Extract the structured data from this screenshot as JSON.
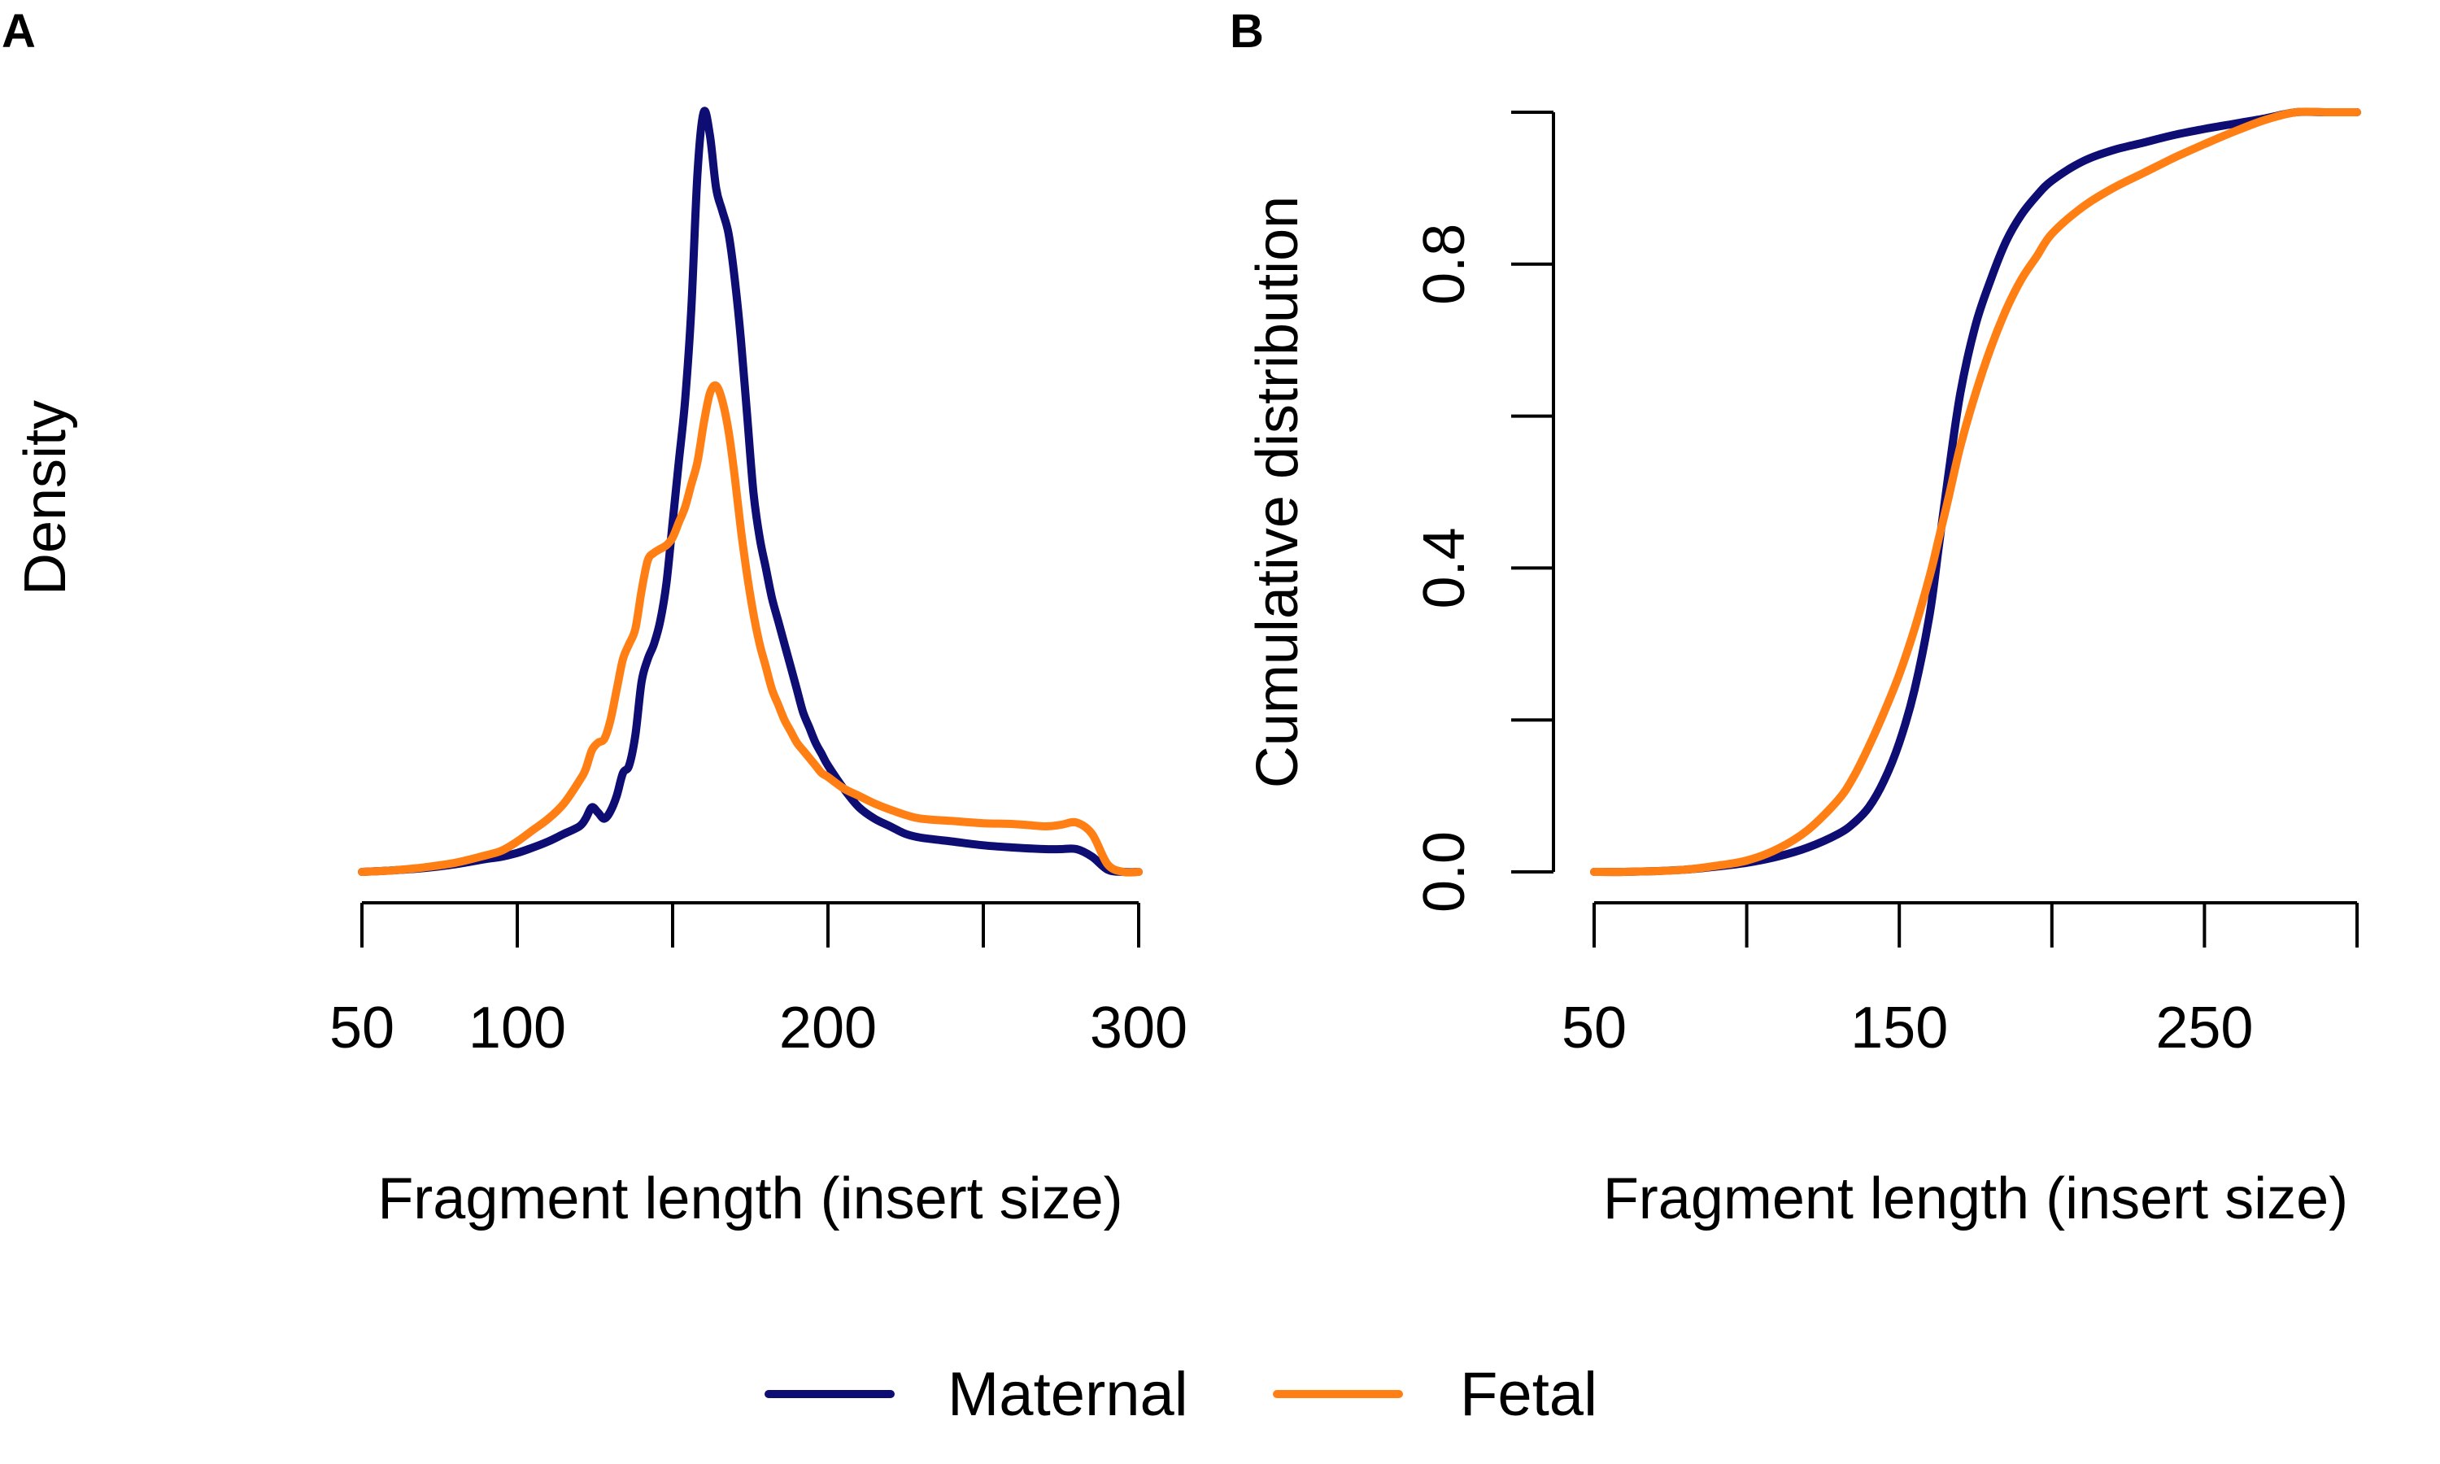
{
  "figure": {
    "panel_a_label": "A",
    "panel_b_label": "B"
  },
  "colors": {
    "maternal": "#0d0d73",
    "fetal": "#ff7f14",
    "axis": "#000000"
  },
  "legend": {
    "position": "bottom-center",
    "items": [
      {
        "label": "Maternal",
        "color": "#0d0d73"
      },
      {
        "label": "Fetal",
        "color": "#ff7f14"
      }
    ]
  },
  "chart_data": [
    {
      "panel": "A",
      "type": "line",
      "title": "",
      "xlabel": "Fragment length (insert size)",
      "ylabel": "Density",
      "xlim": [
        50,
        300
      ],
      "ylim": [
        0,
        1
      ],
      "x_ticks": [
        50,
        100,
        150,
        200,
        250,
        300
      ],
      "x_tick_labels": [
        "50",
        "100",
        "",
        "200",
        "",
        "300"
      ],
      "y_axis_shown": false,
      "grid": false,
      "series": [
        {
          "name": "Maternal",
          "color": "#0d0d73",
          "x": [
            50,
            60,
            70,
            80,
            90,
            95,
            100,
            105,
            110,
            115,
            120,
            122,
            124,
            126,
            128,
            130,
            132,
            134,
            136,
            138,
            140,
            142,
            144,
            146,
            148,
            150,
            152,
            154,
            156,
            158,
            160,
            162,
            164,
            166,
            168,
            170,
            172,
            174,
            176,
            178,
            180,
            182,
            184,
            186,
            188,
            190,
            192,
            194,
            196,
            198,
            200,
            205,
            210,
            215,
            220,
            225,
            230,
            240,
            250,
            260,
            270,
            275,
            280,
            285,
            290,
            295,
            300
          ],
          "y": [
            0.0,
            0.002,
            0.005,
            0.01,
            0.017,
            0.02,
            0.025,
            0.032,
            0.04,
            0.05,
            0.06,
            0.07,
            0.085,
            0.078,
            0.07,
            0.08,
            0.1,
            0.13,
            0.14,
            0.18,
            0.25,
            0.28,
            0.3,
            0.33,
            0.38,
            0.46,
            0.54,
            0.62,
            0.74,
            0.92,
            1.0,
            0.97,
            0.9,
            0.87,
            0.84,
            0.78,
            0.7,
            0.6,
            0.5,
            0.44,
            0.4,
            0.36,
            0.33,
            0.3,
            0.27,
            0.24,
            0.21,
            0.19,
            0.17,
            0.155,
            0.14,
            0.11,
            0.085,
            0.07,
            0.06,
            0.05,
            0.045,
            0.04,
            0.035,
            0.032,
            0.03,
            0.03,
            0.03,
            0.02,
            0.003,
            0.0,
            0.0
          ]
        },
        {
          "name": "Fetal",
          "color": "#ff7f14",
          "x": [
            50,
            60,
            70,
            80,
            90,
            95,
            100,
            105,
            110,
            115,
            120,
            122,
            124,
            126,
            128,
            130,
            132,
            134,
            136,
            138,
            140,
            142,
            144,
            146,
            148,
            150,
            152,
            154,
            156,
            158,
            160,
            162,
            164,
            166,
            168,
            170,
            172,
            174,
            176,
            178,
            180,
            182,
            184,
            186,
            188,
            190,
            192,
            194,
            196,
            198,
            200,
            205,
            210,
            215,
            220,
            225,
            230,
            240,
            250,
            260,
            270,
            275,
            280,
            285,
            290,
            295,
            300
          ],
          "y": [
            0.0,
            0.002,
            0.006,
            0.012,
            0.022,
            0.028,
            0.04,
            0.055,
            0.07,
            0.09,
            0.12,
            0.135,
            0.16,
            0.17,
            0.175,
            0.2,
            0.24,
            0.28,
            0.3,
            0.32,
            0.37,
            0.41,
            0.42,
            0.425,
            0.43,
            0.44,
            0.46,
            0.48,
            0.51,
            0.54,
            0.59,
            0.63,
            0.64,
            0.62,
            0.58,
            0.52,
            0.45,
            0.39,
            0.34,
            0.3,
            0.27,
            0.24,
            0.22,
            0.2,
            0.185,
            0.17,
            0.16,
            0.15,
            0.14,
            0.13,
            0.125,
            0.11,
            0.1,
            0.09,
            0.082,
            0.075,
            0.07,
            0.067,
            0.064,
            0.063,
            0.06,
            0.062,
            0.065,
            0.05,
            0.01,
            0.0,
            0.0
          ]
        }
      ]
    },
    {
      "panel": "B",
      "type": "line",
      "title": "",
      "xlabel": "Fragment length (insert size)",
      "ylabel": "Cumulative distribution",
      "xlim": [
        50,
        300
      ],
      "ylim": [
        0,
        1
      ],
      "x_ticks": [
        50,
        100,
        150,
        200,
        250,
        300
      ],
      "x_tick_labels": [
        "50",
        "",
        "150",
        "",
        "250",
        ""
      ],
      "y_ticks": [
        0.0,
        0.2,
        0.4,
        0.6,
        0.8,
        1.0
      ],
      "y_tick_labels": [
        "0.0",
        "",
        "0.4",
        "",
        "0.8",
        ""
      ],
      "grid": false,
      "series": [
        {
          "name": "Maternal",
          "color": "#0d0d73",
          "x": [
            50,
            60,
            70,
            80,
            90,
            100,
            110,
            120,
            130,
            135,
            140,
            145,
            150,
            155,
            160,
            163,
            166,
            170,
            175,
            180,
            185,
            190,
            195,
            200,
            210,
            220,
            230,
            240,
            250,
            260,
            270,
            280,
            290,
            300
          ],
          "y": [
            0.0,
            0.0,
            0.001,
            0.003,
            0.007,
            0.012,
            0.02,
            0.032,
            0.05,
            0.064,
            0.085,
            0.12,
            0.17,
            0.24,
            0.34,
            0.43,
            0.52,
            0.63,
            0.72,
            0.78,
            0.83,
            0.865,
            0.89,
            0.91,
            0.935,
            0.95,
            0.96,
            0.97,
            0.978,
            0.985,
            0.992,
            1.0,
            1.0,
            1.0
          ]
        },
        {
          "name": "Fetal",
          "color": "#ff7f14",
          "x": [
            50,
            60,
            70,
            80,
            90,
            100,
            110,
            120,
            130,
            135,
            140,
            145,
            150,
            155,
            160,
            163,
            166,
            170,
            175,
            180,
            185,
            190,
            195,
            200,
            210,
            220,
            230,
            240,
            250,
            260,
            270,
            280,
            290,
            300
          ],
          "y": [
            0.0,
            0.0,
            0.001,
            0.003,
            0.008,
            0.015,
            0.03,
            0.055,
            0.095,
            0.125,
            0.165,
            0.21,
            0.26,
            0.32,
            0.39,
            0.44,
            0.49,
            0.56,
            0.63,
            0.69,
            0.74,
            0.78,
            0.81,
            0.84,
            0.875,
            0.9,
            0.92,
            0.94,
            0.958,
            0.975,
            0.99,
            1.0,
            1.0,
            1.0
          ]
        }
      ]
    }
  ]
}
